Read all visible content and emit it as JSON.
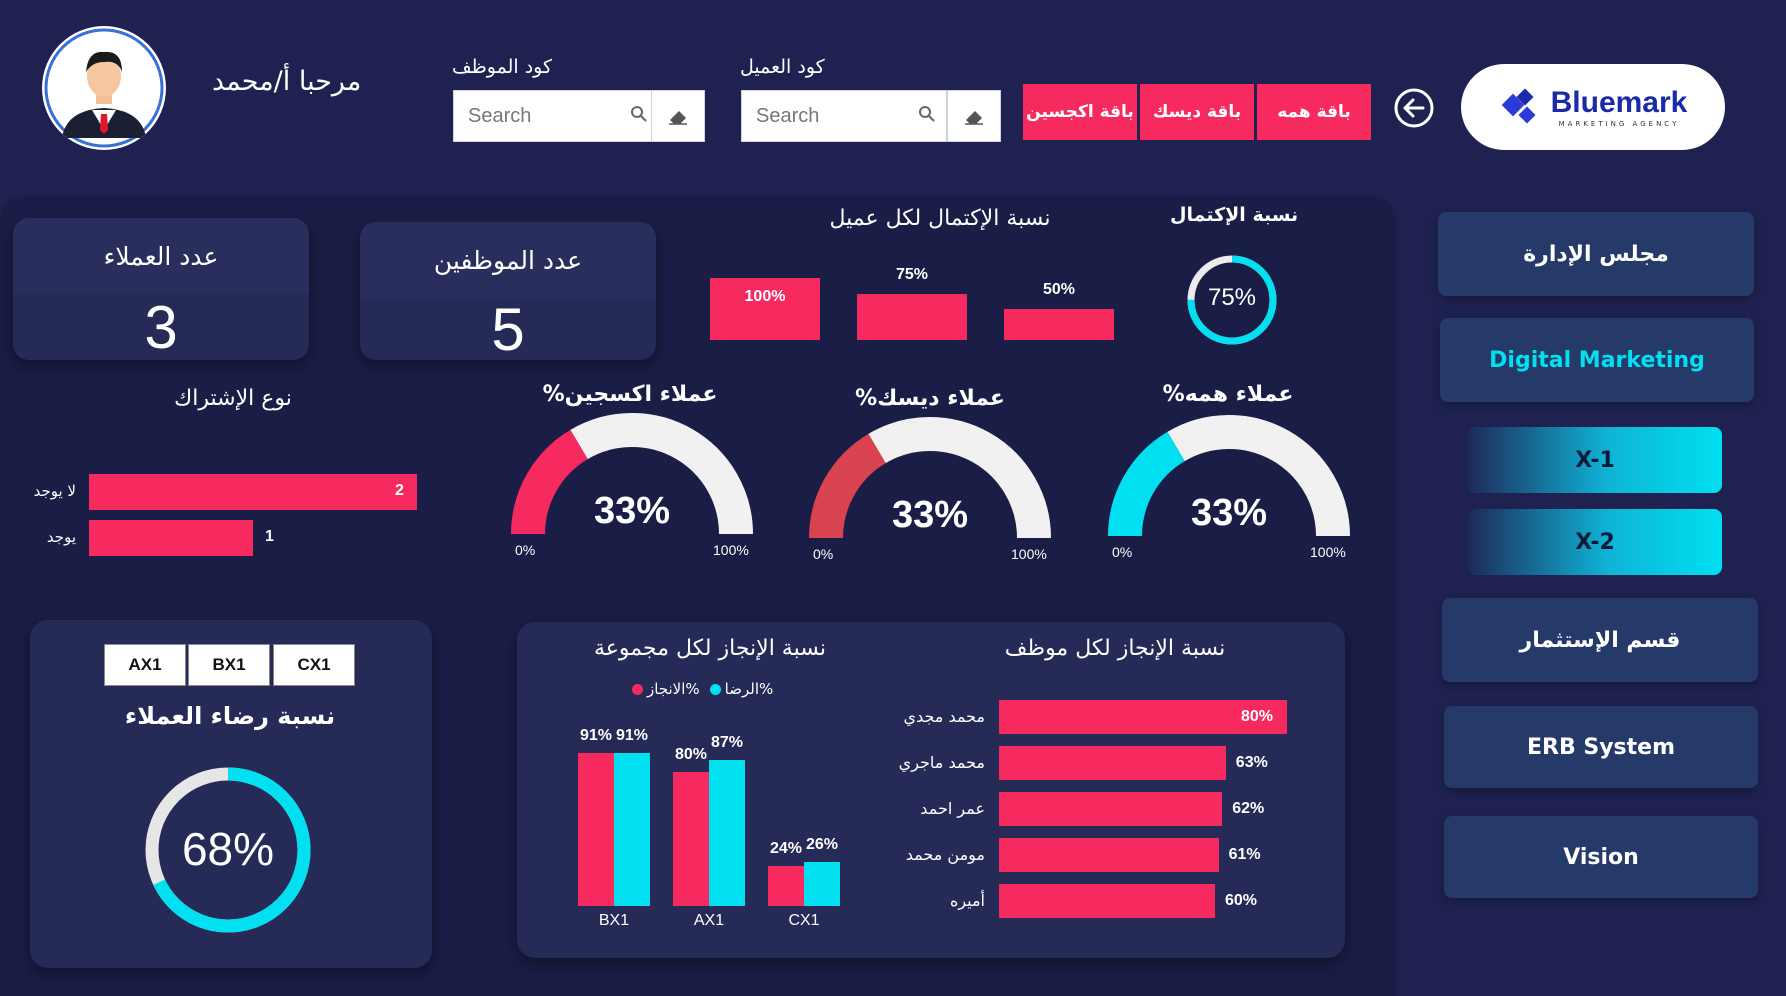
{
  "header": {
    "welcome": "مرحبا  أ/محمد",
    "employee_code_label": "كود الموظف",
    "client_code_label": "كود العميل",
    "search_placeholder": "Search",
    "packages": [
      "باقة اكجسين",
      "باقة ديسك",
      "باقة همه"
    ],
    "logo_text": "Bluemark",
    "logo_sub": "MARKETING AGENCY"
  },
  "kpis": {
    "clients_label": "عدد العملاء",
    "clients_value": "3",
    "employees_label": "عدد الموظفين",
    "employees_value": "5"
  },
  "completion": {
    "per_client_title": "نسبة الإكتمال لكل عميل",
    "overall_title": "نسبة الإكتمال",
    "overall_value": "75%",
    "overall_fraction": 0.75,
    "bars": [
      {
        "label": "100%",
        "value": 1.0
      },
      {
        "label": "75%",
        "value": 0.75
      },
      {
        "label": "50%",
        "value": 0.5
      }
    ]
  },
  "subscription": {
    "title": "نوع الإشتراك",
    "rows": [
      {
        "label": "لا يوجد",
        "value": 2
      },
      {
        "label": "يوجد",
        "value": 1
      }
    ]
  },
  "gauges": [
    {
      "title": "%عملاء اكسجين",
      "value": "33%",
      "fraction": 0.33,
      "color": "#f72a60",
      "min": "0%",
      "max": "100%"
    },
    {
      "title": "%عملاء ديسك",
      "value": "33%",
      "fraction": 0.33,
      "color": "#d9434f",
      "min": "0%",
      "max": "100%"
    },
    {
      "title": "%عملاء همه",
      "value": "33%",
      "fraction": 0.33,
      "color": "#00e0f0",
      "min": "0%",
      "max": "100%"
    }
  ],
  "satisfaction": {
    "tabs": [
      "AX1",
      "BX1",
      "CX1"
    ],
    "title": "نسبة رضاء العملاء",
    "value": "68%",
    "fraction": 0.68
  },
  "group_chart": {
    "title": "نسبة الإنجاز لكل مجموعة",
    "legend_a": "الانجاز%",
    "legend_b": "الرضا%"
  },
  "employee_chart": {
    "title": "نسبة الإنجاز لكل موظف"
  },
  "chart_data": [
    {
      "type": "bar",
      "title": "نسبة الإنجاز لكل مجموعة",
      "categories": [
        "BX1",
        "AX1",
        "CX1"
      ],
      "series": [
        {
          "name": "الانجاز%",
          "values": [
            91,
            80,
            24
          ],
          "color": "#f72a60"
        },
        {
          "name": "الرضا%",
          "values": [
            91,
            87,
            26
          ],
          "color": "#00e0f0"
        }
      ],
      "ylim": [
        0,
        100
      ],
      "legend": "top"
    },
    {
      "type": "bar",
      "title": "نسبة الإنجاز لكل موظف",
      "categories": [
        "محمد مجدي",
        "محمد ماجري",
        "عمر احمد",
        "مومن محمد",
        "أميره"
      ],
      "values": [
        80,
        63,
        62,
        61,
        60
      ],
      "labels": [
        "80%",
        "63%",
        "62%",
        "61%",
        "60%"
      ],
      "orientation": "horizontal",
      "xlim": [
        0,
        100
      ]
    }
  ],
  "nav": {
    "items": [
      "مجلس الإدارة",
      "Digital Marketing",
      "X-1",
      "X-2",
      "قسم الإستثمار",
      "ERB System",
      "Vision"
    ]
  }
}
